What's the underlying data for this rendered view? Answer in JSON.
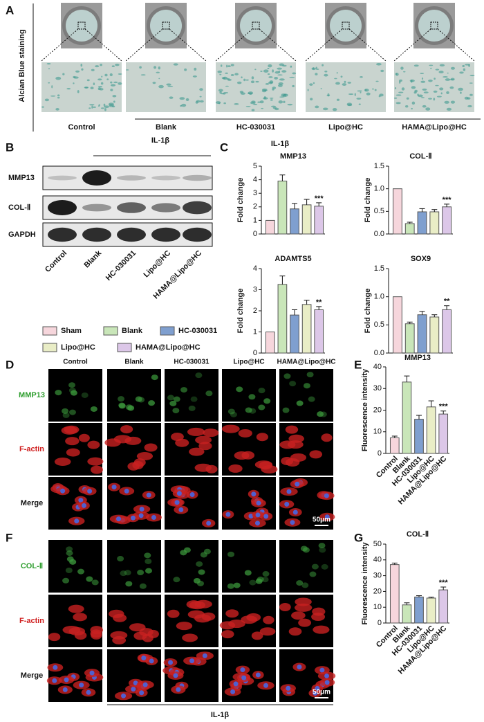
{
  "panels": {
    "a": "A",
    "b": "B",
    "c": "C",
    "d": "D",
    "e": "E",
    "f": "F",
    "g": "G"
  },
  "panel_a": {
    "side_label": "Alcian Blue staining",
    "groups": [
      "Control",
      "Blank",
      "HC-030031",
      "Lipo@HC",
      "HAMA@Lipo@HC"
    ]
  },
  "panel_b": {
    "treatment": "IL-1β",
    "rows": [
      "MMP13",
      "COL-Ⅱ",
      "GAPDH"
    ],
    "lanes": [
      "Control",
      "Blank",
      "HC-030031",
      "Lipo@HC",
      "HAMA@Lipo@HC"
    ]
  },
  "panel_c": {
    "treatment": "IL-1β"
  },
  "legend": {
    "names": [
      "Sham",
      "Blank",
      "HC-030031",
      "Lipo@HC",
      "HAMA@Lipo@HC"
    ],
    "colors": [
      "#f6d6dc",
      "#c9e6b9",
      "#7f9fcf",
      "#e9edc6",
      "#dcc7e8"
    ]
  },
  "panel_d": {
    "columns": [
      "Control",
      "Blank",
      "HC-030031",
      "Lipo@HC",
      "HAMA@Lipo@HC"
    ],
    "rows": [
      "MMP13",
      "F-actin",
      "Merge"
    ],
    "scale_bar": "50μm"
  },
  "panel_f": {
    "rows": [
      "COL-Ⅱ",
      "F-actin",
      "Merge"
    ],
    "scale_bar": "50μm",
    "treatment": "IL-1β"
  },
  "chart_data": [
    {
      "type": "bar",
      "title": "MMP13",
      "ylabel": "Fold change",
      "values": [
        1,
        3.9,
        1.85,
        2.15,
        2.05
      ],
      "errors": [
        0,
        0.45,
        0.4,
        0.4,
        0.25
      ],
      "annotations": [
        null,
        null,
        null,
        null,
        "***"
      ],
      "colors": [
        "#f6d6dc",
        "#c9e6b9",
        "#7f9fcf",
        "#e9edc6",
        "#dcc7e8"
      ],
      "ylim": [
        0,
        5
      ],
      "yticks": [
        0,
        1,
        2,
        3,
        4,
        5
      ]
    },
    {
      "type": "bar",
      "title": "COL-Ⅱ",
      "ylabel": "Fold change",
      "values": [
        1,
        0.23,
        0.49,
        0.49,
        0.6
      ],
      "errors": [
        0,
        0.03,
        0.07,
        0.05,
        0.06
      ],
      "annotations": [
        null,
        null,
        null,
        null,
        "***"
      ],
      "colors": [
        "#f6d6dc",
        "#c9e6b9",
        "#7f9fcf",
        "#e9edc6",
        "#dcc7e8"
      ],
      "ylim": [
        0,
        1.5
      ],
      "yticks": [
        {
          "value": 0,
          "label": "0.0"
        },
        0.5,
        {
          "value": 1,
          "label": "1.0"
        },
        1.5
      ]
    },
    {
      "type": "bar",
      "title": "ADAMTS5",
      "ylabel": "Fold change",
      "values": [
        1,
        3.25,
        1.8,
        2.3,
        2.05
      ],
      "errors": [
        0,
        0.4,
        0.25,
        0.2,
        0.15
      ],
      "annotations": [
        null,
        null,
        null,
        null,
        "**"
      ],
      "colors": [
        "#f6d6dc",
        "#c9e6b9",
        "#7f9fcf",
        "#e9edc6",
        "#dcc7e8"
      ],
      "ylim": [
        0,
        4
      ],
      "yticks": [
        0,
        1,
        2,
        3,
        4
      ]
    },
    {
      "type": "bar",
      "title": "SOX9",
      "ylabel": "Fold change",
      "values": [
        1,
        0.52,
        0.68,
        0.64,
        0.77
      ],
      "errors": [
        0,
        0.03,
        0.06,
        0.04,
        0.07
      ],
      "annotations": [
        null,
        null,
        null,
        null,
        "**"
      ],
      "colors": [
        "#f6d6dc",
        "#c9e6b9",
        "#7f9fcf",
        "#e9edc6",
        "#dcc7e8"
      ],
      "ylim": [
        0,
        1.5
      ],
      "yticks": [
        {
          "value": 0,
          "label": "0.0"
        },
        0.5,
        {
          "value": 1,
          "label": "1.0"
        },
        1.5
      ]
    },
    {
      "type": "bar",
      "title": "MMP13",
      "ylabel": "Fluorescence intensity",
      "categories": [
        "Control",
        "Blank",
        "HC-030031",
        "Lipo@HC",
        "HAMA@Lipo@HC"
      ],
      "values": [
        7.2,
        33,
        15.8,
        21.5,
        18.2
      ],
      "errors": [
        0.8,
        2.8,
        1.8,
        2.8,
        1.4
      ],
      "annotations": [
        null,
        null,
        null,
        null,
        "***"
      ],
      "colors": [
        "#f6d6dc",
        "#c9e6b9",
        "#7f9fcf",
        "#e9edc6",
        "#dcc7e8"
      ],
      "ylim": [
        0,
        40
      ],
      "yticks": [
        0,
        10,
        20,
        30,
        40
      ]
    },
    {
      "type": "bar",
      "title": "COL-Ⅱ",
      "ylabel": "Fluorescence intensity",
      "categories": [
        "Control",
        "Blank",
        "HC-030031",
        "Lipo@HC",
        "HAMA@Lipo@HC"
      ],
      "values": [
        37,
        11.5,
        16.5,
        15.8,
        21
      ],
      "errors": [
        1,
        1.3,
        0.8,
        0.6,
        1.8
      ],
      "annotations": [
        null,
        null,
        null,
        null,
        "***"
      ],
      "colors": [
        "#f6d6dc",
        "#c9e6b9",
        "#7f9fcf",
        "#e9edc6",
        "#dcc7e8"
      ],
      "ylim": [
        0,
        50
      ],
      "yticks": [
        0,
        10,
        20,
        30,
        40,
        50
      ]
    }
  ]
}
